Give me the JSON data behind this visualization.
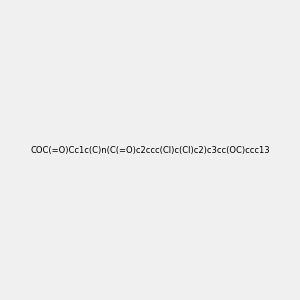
{
  "smiles": "COC(=O)Cc1c(C)n(C(=O)c2ccc(Cl)c(Cl)c2)c3cc(OC)ccc13",
  "title": "",
  "background_color": "#f0f0f0",
  "atom_colors": {
    "O": "#ff0000",
    "N": "#0000ff",
    "Cl": "#00aa00",
    "C": "#000000"
  },
  "figsize": [
    3.0,
    3.0
  ],
  "dpi": 100
}
